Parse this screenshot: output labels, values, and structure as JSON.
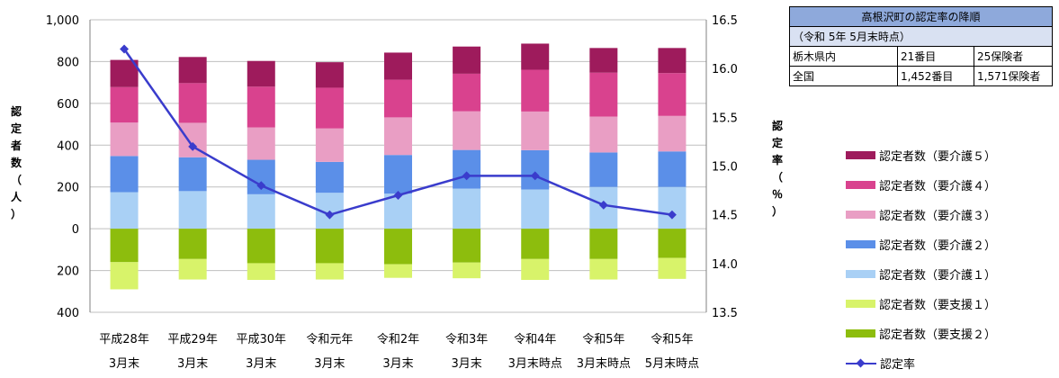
{
  "chart_data": {
    "type": "bar",
    "stacked": true,
    "categories": [
      [
        "平成28年",
        "3月末"
      ],
      [
        "平成29年",
        "3月末"
      ],
      [
        "平成30年",
        "3月末"
      ],
      [
        "令和元年",
        "3月末"
      ],
      [
        "令和2年",
        "3月末"
      ],
      [
        "令和3年",
        "3月末"
      ],
      [
        "令和4年",
        "3月末時点"
      ],
      [
        "令和5年",
        "3月末時点"
      ],
      [
        "令和5年",
        "5月末時点"
      ]
    ],
    "ylabel": "認定者数（人）",
    "y2label": "認定率（％）",
    "ylim": [
      -400,
      1000
    ],
    "y_ticks": [
      -400,
      -200,
      0,
      200,
      400,
      600,
      800,
      1000
    ],
    "y_tick_labels": [
      "400",
      "200",
      "0",
      "200",
      "400",
      "600",
      "800",
      "1,000"
    ],
    "y2lim": [
      13.5,
      16.5
    ],
    "y2_ticks": [
      13.5,
      14.0,
      14.5,
      15.0,
      15.5,
      16.0,
      16.5
    ],
    "y2_tick_labels": [
      "13.5",
      "14.0",
      "14.5",
      "15.0",
      "15.5",
      "16.0",
      "16.5"
    ],
    "grid": true,
    "series_up": [
      {
        "name": "認定者数（要介護１）",
        "color": "#a9d0f5",
        "values": [
          175,
          180,
          165,
          172,
          168,
          192,
          188,
          200,
          200
        ]
      },
      {
        "name": "認定者数（要介護２）",
        "color": "#5b8fe8",
        "values": [
          173,
          162,
          165,
          148,
          185,
          185,
          188,
          165,
          170
        ]
      },
      {
        "name": "認定者数（要介護３）",
        "color": "#e99ec4",
        "values": [
          160,
          165,
          155,
          160,
          180,
          185,
          185,
          172,
          170
        ]
      },
      {
        "name": "認定者数（要介護４）",
        "color": "#d9428e",
        "values": [
          170,
          190,
          195,
          195,
          180,
          180,
          200,
          210,
          205
        ]
      },
      {
        "name": "認定者数（要介護５）",
        "color": "#9e1b5c",
        "values": [
          130,
          125,
          123,
          122,
          130,
          130,
          125,
          118,
          120
        ]
      }
    ],
    "series_down": [
      {
        "name": "認定者数（要支援２）",
        "color": "#8dbd0d",
        "values": [
          160,
          145,
          165,
          165,
          170,
          162,
          145,
          145,
          140
        ]
      },
      {
        "name": "認定者数（要支援１）",
        "color": "#d8f36a",
        "values": [
          130,
          98,
          80,
          78,
          65,
          75,
          100,
          98,
          100
        ]
      }
    ],
    "line": {
      "name": "認定率",
      "color": "#3a3ccc",
      "values": [
        16.2,
        15.2,
        14.8,
        14.5,
        14.7,
        14.9,
        14.9,
        14.6,
        14.5
      ]
    },
    "legend": [
      {
        "name": "認定者数（要介護５）",
        "color": "#9e1b5c",
        "kind": "bar"
      },
      {
        "name": "認定者数（要介護４）",
        "color": "#d9428e",
        "kind": "bar"
      },
      {
        "name": "認定者数（要介護３）",
        "color": "#e99ec4",
        "kind": "bar"
      },
      {
        "name": "認定者数（要介護２）",
        "color": "#5b8fe8",
        "kind": "bar"
      },
      {
        "name": "認定者数（要介護１）",
        "color": "#a9d0f5",
        "kind": "bar"
      },
      {
        "name": "認定者数（要支援１）",
        "color": "#d8f36a",
        "kind": "bar"
      },
      {
        "name": "認定者数（要支援２）",
        "color": "#8dbd0d",
        "kind": "bar"
      },
      {
        "name": "認定率",
        "color": "#3a3ccc",
        "kind": "line"
      }
    ],
    "legend_placement": "right"
  },
  "info_table": {
    "title": "高根沢町の認定率の降順",
    "subtitle": "（令和 5年 5月末時点）",
    "rows": [
      [
        "栃木県内",
        "21番目",
        "25保険者"
      ],
      [
        "全国",
        "1,452番目",
        "1,571保険者"
      ]
    ]
  }
}
